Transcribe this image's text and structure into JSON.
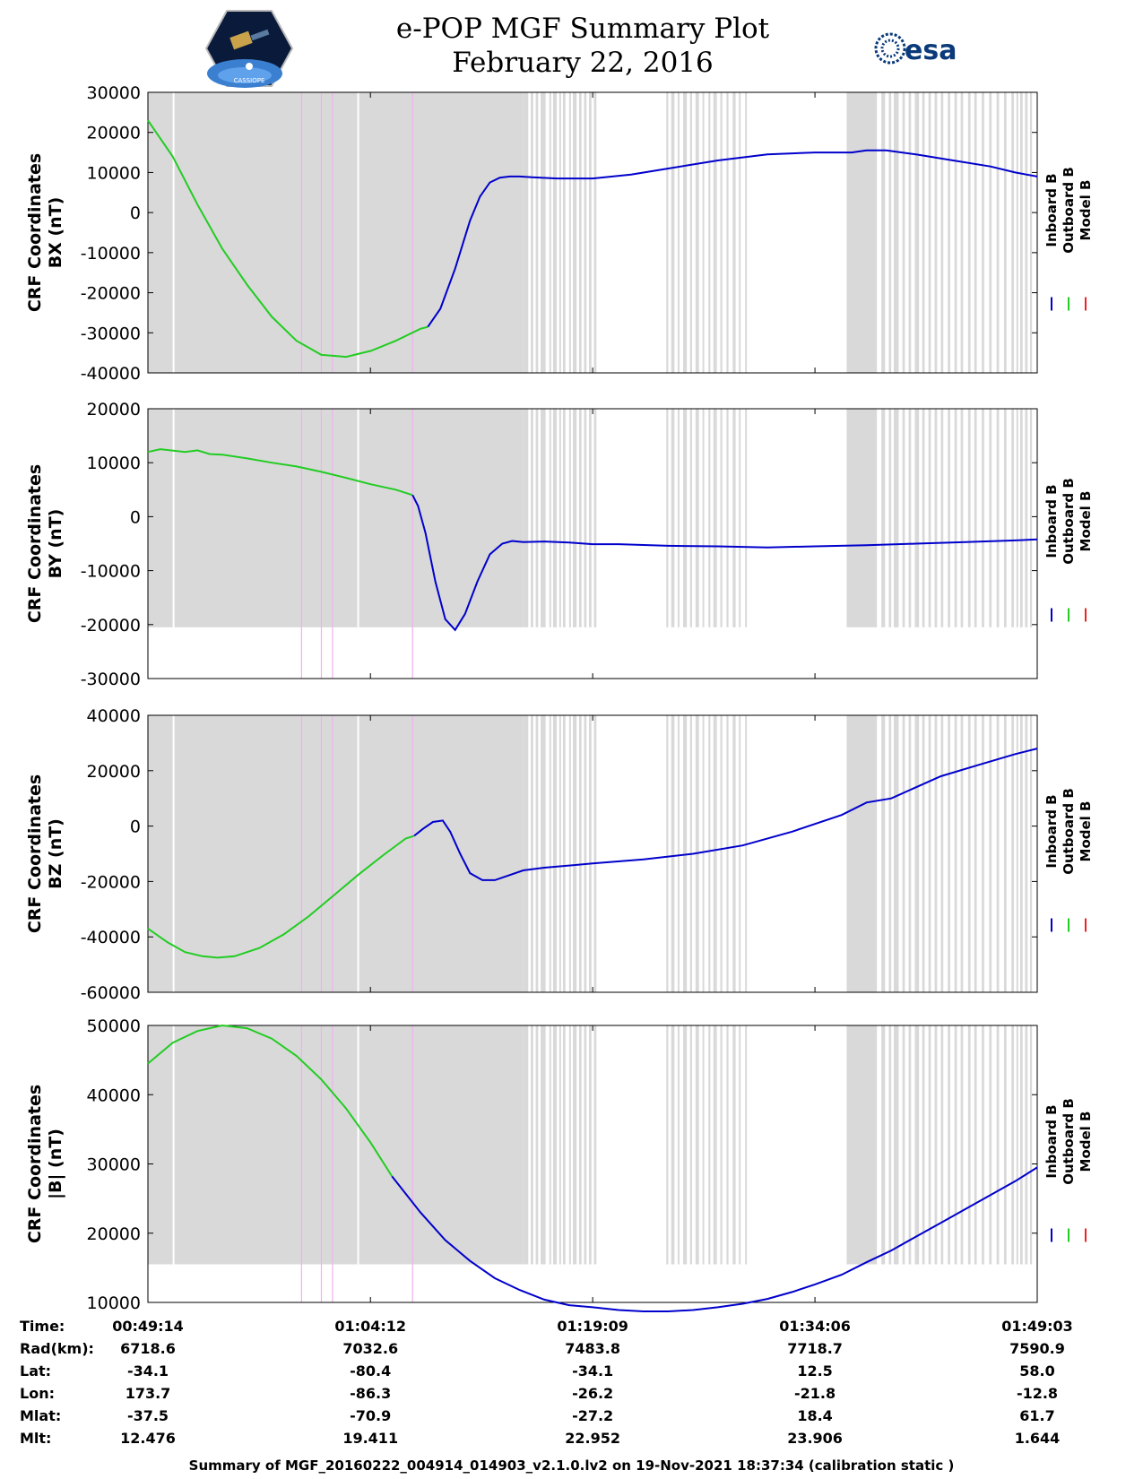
{
  "header": {
    "title": "e-POP MGF Summary Plot",
    "date": "February 22, 2016",
    "left_logo_text": "CASSIOPE",
    "right_logo_text": "esa"
  },
  "footer": "Summary of MGF_20160222_004914_014903_v2.1.0.lv2 on 19-Nov-2021 18:37:34 (calibration static )",
  "colors": {
    "inboard": "#0000cc",
    "outboard": "#22cc22",
    "model": "#ee2222",
    "gap_shade": "#d9d9d9",
    "pink_marker": "#f0b0f0"
  },
  "chart_data": {
    "type": "line",
    "x_unit": "seconds since 00:49:14",
    "x_range": [
      0,
      3589
    ],
    "legend": [
      "Inboard B",
      "Outboard B",
      "Model B"
    ],
    "legend_placement": "right",
    "shaded_gap_region": [
      0,
      1515
    ],
    "pink_markers": [
      620,
      700,
      745,
      1068
    ],
    "white_gaps_in_shaded": [
      100,
      845
    ],
    "tick_times": [
      0,
      898,
      1795,
      2692,
      3589
    ],
    "panels": [
      {
        "id": "bx",
        "ylabel_line1": "CRF Coordinates",
        "ylabel_line2": "BX (nT)",
        "ylim": [
          -40000,
          30000
        ],
        "yticks": [
          30000,
          20000,
          10000,
          0,
          -10000,
          -20000,
          -30000,
          -40000
        ],
        "outboard": {
          "x": [
            0,
            100,
            200,
            300,
            400,
            500,
            600,
            700,
            800,
            900,
            1000,
            1100,
            1130
          ],
          "y": [
            23000,
            14000,
            2000,
            -9000,
            -18000,
            -26000,
            -32000,
            -35500,
            -36000,
            -34500,
            -32000,
            -29000,
            -28500
          ]
        },
        "inboard": {
          "x": [
            1130,
            1180,
            1240,
            1300,
            1340,
            1380,
            1420,
            1460,
            1500,
            1550,
            1650,
            1795,
            1950,
            2100,
            2300,
            2500,
            2692,
            2840,
            2900,
            2980,
            3100,
            3250,
            3400,
            3500,
            3589
          ],
          "y": [
            -28500,
            -24000,
            -14000,
            -2000,
            4000,
            7500,
            8700,
            9000,
            9000,
            8800,
            8500,
            8500,
            9500,
            11000,
            13000,
            14500,
            15000,
            15000,
            15500,
            15500,
            14500,
            13000,
            11500,
            10000,
            9000
          ]
        }
      },
      {
        "id": "by",
        "ylabel_line1": "CRF Coordinates",
        "ylabel_line2": "BY (nT)",
        "ylim": [
          -30000,
          20000
        ],
        "yticks": [
          20000,
          10000,
          0,
          -10000,
          -20000,
          -30000
        ],
        "shade_ymin": -20500,
        "outboard": {
          "x": [
            0,
            50,
            150,
            200,
            250,
            300,
            400,
            500,
            600,
            700,
            800,
            900,
            1000,
            1068
          ],
          "y": [
            12000,
            12500,
            12000,
            12300,
            11600,
            11500,
            10800,
            10000,
            9300,
            8300,
            7200,
            6000,
            5000,
            4000
          ]
        },
        "inboard": {
          "x": [
            1068,
            1090,
            1120,
            1160,
            1200,
            1240,
            1280,
            1330,
            1380,
            1430,
            1470,
            1515,
            1600,
            1700,
            1795,
            1900,
            2100,
            2300,
            2500,
            2692,
            2900,
            3100,
            3300,
            3500,
            3589
          ],
          "y": [
            4000,
            2000,
            -3000,
            -12000,
            -19000,
            -21000,
            -18000,
            -12000,
            -7000,
            -5000,
            -4500,
            -4700,
            -4600,
            -4800,
            -5100,
            -5100,
            -5400,
            -5500,
            -5700,
            -5500,
            -5300,
            -5000,
            -4700,
            -4400,
            -4200
          ]
        }
      },
      {
        "id": "bz",
        "ylabel_line1": "CRF Coordinates",
        "ylabel_line2": "BZ (nT)",
        "ylim": [
          -60000,
          40000
        ],
        "yticks": [
          40000,
          20000,
          0,
          -20000,
          -40000,
          -60000
        ],
        "outboard": {
          "x": [
            0,
            80,
            150,
            220,
            280,
            350,
            450,
            550,
            650,
            750,
            850,
            950,
            1040,
            1075
          ],
          "y": [
            -37000,
            -42000,
            -45500,
            -47000,
            -47500,
            -47000,
            -44000,
            -39000,
            -32500,
            -25000,
            -17500,
            -10500,
            -4500,
            -3500
          ]
        },
        "inboard": {
          "x": [
            1075,
            1110,
            1150,
            1190,
            1220,
            1260,
            1300,
            1350,
            1400,
            1450,
            1515,
            1600,
            1795,
            2000,
            2200,
            2400,
            2600,
            2800,
            2900,
            3000,
            3100,
            3200,
            3350,
            3500,
            3589
          ],
          "y": [
            -3500,
            -1000,
            1500,
            2000,
            -2000,
            -10000,
            -17000,
            -19500,
            -19500,
            -18000,
            -16000,
            -15000,
            -13500,
            -12000,
            -10000,
            -7000,
            -2000,
            4000,
            8500,
            10000,
            14000,
            18000,
            22000,
            26000,
            28000
          ]
        }
      },
      {
        "id": "bmag",
        "ylabel_line1": "CRF Coordinates",
        "ylabel_line2": "|B| (nT)",
        "ylim": [
          10000,
          50000
        ],
        "yticks": [
          50000,
          40000,
          30000,
          20000,
          10000
        ],
        "shade_ymin": 15500,
        "outboard": {
          "x": [
            0,
            100,
            200,
            300,
            400,
            500,
            600,
            700,
            800,
            900,
            985
          ],
          "y": [
            44500,
            47500,
            49200,
            50000,
            49600,
            48100,
            45600,
            42200,
            38000,
            33000,
            28200
          ]
        },
        "inboard": {
          "x": [
            985,
            1100,
            1200,
            1300,
            1400,
            1500,
            1600,
            1700,
            1795,
            1900,
            2000,
            2100,
            2200,
            2300,
            2400,
            2500,
            2600,
            2692,
            2800,
            2900,
            3000,
            3100,
            3200,
            3300,
            3400,
            3500,
            3589
          ],
          "y": [
            28200,
            23000,
            19000,
            16000,
            13500,
            11800,
            10400,
            9600,
            9300,
            8900,
            8700,
            8700,
            8900,
            9300,
            9800,
            10500,
            11500,
            12600,
            14000,
            15800,
            17500,
            19500,
            21500,
            23500,
            25500,
            27500,
            29500
          ]
        }
      }
    ],
    "info_table": {
      "rows": [
        {
          "label": "Time:",
          "values": [
            "00:49:14",
            "01:04:12",
            "01:19:09",
            "01:34:06",
            "01:49:03"
          ]
        },
        {
          "label": "Rad(km):",
          "values": [
            "6718.6",
            "7032.6",
            "7483.8",
            "7718.7",
            "7590.9"
          ]
        },
        {
          "label": "Lat:",
          "values": [
            "-34.1",
            "-80.4",
            "-34.1",
            "12.5",
            "58.0"
          ]
        },
        {
          "label": "Lon:",
          "values": [
            "173.7",
            "-86.3",
            "-26.2",
            "-21.8",
            "-12.8"
          ]
        },
        {
          "label": "Mlat:",
          "values": [
            "-37.5",
            "-70.9",
            "-27.2",
            "18.4",
            "61.7"
          ]
        },
        {
          "label": "Mlt:",
          "values": [
            "12.476",
            "19.411",
            "22.952",
            "23.906",
            "1.644"
          ]
        }
      ]
    }
  }
}
